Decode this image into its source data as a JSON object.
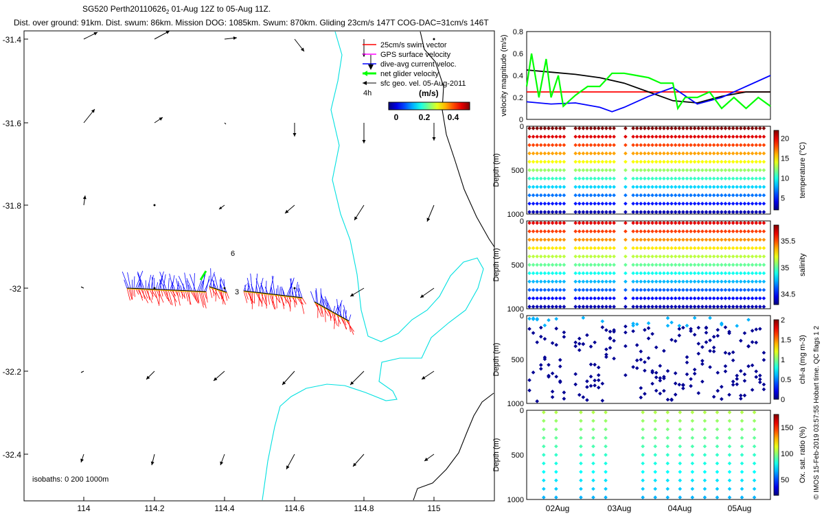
{
  "header": {
    "title_main": "SG520 Perth20110626",
    "title_sub": "2",
    "title_rest": " 01-Aug 12Z to 05-Aug 11Z.",
    "line2": "Dist. over ground: 91km. Dist. swum: 86km. Mission DOG: 1085km. Swum: 870km. Gliding 23cm/s 147T COG-DAC=31cm/s 146T"
  },
  "map": {
    "x_ticks": [
      "114",
      "114.2",
      "114.4",
      "114.6",
      "114.8",
      "115"
    ],
    "y_ticks": [
      "-31.4",
      "-31.6",
      "-31.8",
      "-32",
      "-32.2",
      "-32.4"
    ],
    "isobaths_label": "isobaths: 0   200  1000m",
    "hour_labels": [
      "6",
      "3"
    ],
    "legend": [
      {
        "label": "25cm/s swim vector",
        "color": "#ff0000"
      },
      {
        "label": "GPS surface velocity",
        "color": "#ff00ff"
      },
      {
        "label": "dive-avg current veloc.",
        "color": "#0000ff"
      },
      {
        "label": "net glider velocity",
        "color": "#00ff00"
      },
      {
        "label": "sfc geo. vel. 05-Aug-2011",
        "color": "#000000"
      }
    ],
    "legend_4h": "4h",
    "colorbar_title": "(m/s)",
    "colorbar_ticks": [
      "0",
      "0.2",
      "0.4"
    ]
  },
  "chart_data": [
    {
      "type": "line",
      "ylabel": "velocity magnitude (m/s)",
      "ylim": [
        0,
        0.8
      ],
      "y_ticks": [
        "0",
        "0.2",
        "0.4",
        "0.6",
        "0.8"
      ],
      "series": [
        {
          "color": "#ff0000",
          "x": [
            0,
            1
          ],
          "values": [
            0.25,
            0.25
          ]
        },
        {
          "color": "#000000",
          "x": [
            0,
            0.1,
            0.2,
            0.3,
            0.4,
            0.5,
            0.6,
            0.7,
            0.8,
            0.9,
            1
          ],
          "values": [
            0.45,
            0.43,
            0.41,
            0.38,
            0.33,
            0.25,
            0.17,
            0.15,
            0.21,
            0.25,
            0.25
          ]
        },
        {
          "color": "#0000ff",
          "x": [
            0,
            0.1,
            0.2,
            0.3,
            0.35,
            0.4,
            0.5,
            0.6,
            0.7,
            0.8,
            0.9,
            1
          ],
          "values": [
            0.16,
            0.14,
            0.15,
            0.11,
            0.07,
            0.11,
            0.21,
            0.29,
            0.14,
            0.2,
            0.3,
            0.4
          ]
        },
        {
          "color": "#00ff00",
          "x": [
            0,
            0.02,
            0.05,
            0.08,
            0.1,
            0.13,
            0.15,
            0.2,
            0.25,
            0.3,
            0.35,
            0.4,
            0.45,
            0.5,
            0.55,
            0.6,
            0.62,
            0.65,
            0.7,
            0.75,
            0.8,
            0.85,
            0.9,
            0.95,
            1
          ],
          "values": [
            0.3,
            0.6,
            0.2,
            0.55,
            0.2,
            0.4,
            0.12,
            0.22,
            0.3,
            0.3,
            0.42,
            0.42,
            0.4,
            0.38,
            0.33,
            0.33,
            0.1,
            0.2,
            0.2,
            0.25,
            0.1,
            0.2,
            0.1,
            0.2,
            0.12
          ]
        }
      ]
    },
    {
      "type": "scatter",
      "ylabel": "Depth (m)",
      "colorbar_label": "temperature (°C)",
      "colorbar_ticks": [
        "5",
        "10",
        "15",
        "20"
      ],
      "y_ticks": [
        "0",
        "500",
        "1000"
      ],
      "ylim": [
        0,
        1000
      ],
      "clim": [
        2,
        22
      ]
    },
    {
      "type": "scatter",
      "ylabel": "Depth (m)",
      "colorbar_label": "salinity",
      "colorbar_ticks": [
        "34.5",
        "35",
        "35.5"
      ],
      "y_ticks": [
        "0",
        "500",
        "1000"
      ],
      "ylim": [
        0,
        1000
      ],
      "clim": [
        34.3,
        35.8
      ]
    },
    {
      "type": "scatter",
      "ylabel": "Depth (m)",
      "colorbar_label": "chl-a (mg m-3)",
      "colorbar_ticks": [
        "0",
        "0.5",
        "1",
        "1.5",
        "2"
      ],
      "y_ticks": [
        "0",
        "500",
        "1000"
      ],
      "ylim": [
        0,
        1000
      ],
      "clim": [
        0,
        2
      ]
    },
    {
      "type": "scatter",
      "ylabel": "Depth (m)",
      "colorbar_label": "Ox. sat. ratio (%)",
      "colorbar_ticks": [
        "50",
        "100",
        "150"
      ],
      "y_ticks": [
        "0",
        "500",
        "1000"
      ],
      "ylim": [
        0,
        1000
      ],
      "clim": [
        20,
        175
      ]
    }
  ],
  "time_axis": {
    "ticks": [
      "02Aug",
      "03Aug",
      "04Aug",
      "05Aug"
    ]
  },
  "side_text": "© IMOS 15-Feb-2019 03:57:55 Hobart time. QC flags 1  2"
}
